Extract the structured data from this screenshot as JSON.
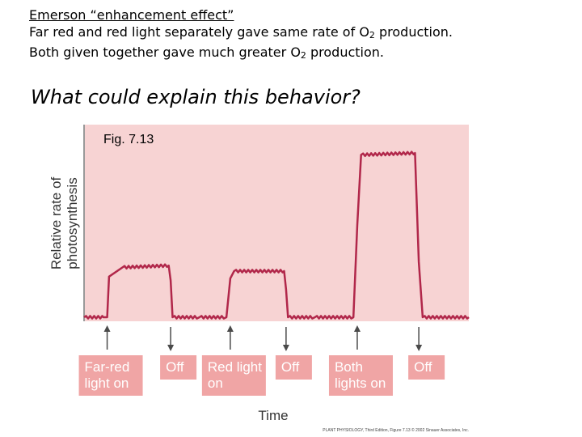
{
  "slide": {
    "heading": "Emerson “enhancement effect”",
    "line1_pre": "Far red and red light separately gave same rate of O",
    "line1_sub": "2",
    "line1_post": " production.",
    "line2_pre": "Both given together gave much greater O",
    "line2_sub": "2",
    "line2_post": " production.",
    "question": "What could explain this behavior?"
  },
  "chart_data": {
    "type": "line",
    "figure_label": "Fig. 7.13",
    "xlabel": "Time",
    "ylabel": "Relative rate of photosynthesis",
    "ylabel_lines": [
      "Relative rate of",
      "photosynthesis"
    ],
    "xlim": [
      0,
      100
    ],
    "ylim": [
      0,
      100
    ],
    "grid": false,
    "series": [
      {
        "x": [
          0,
          5,
          6,
          6.5,
          10,
          22,
          22.5,
          23,
          30,
          37,
          38,
          39,
          52,
          52.5,
          53,
          60,
          70,
          71,
          72,
          86,
          87,
          88,
          100
        ],
        "y": [
          0,
          0,
          0,
          22,
          27,
          28,
          20,
          0,
          0,
          0,
          21,
          25,
          25,
          15,
          0,
          0,
          0,
          50,
          88,
          89,
          30,
          0,
          0
        ]
      }
    ],
    "events": [
      {
        "label": "Far-red light on",
        "lines": [
          "Far-red",
          "light on"
        ],
        "direction": "up",
        "x": 6
      },
      {
        "label": "Off",
        "lines": [
          "Off"
        ],
        "direction": "down",
        "x": 22.5
      },
      {
        "label": "Red light on",
        "lines": [
          "Red light",
          "on"
        ],
        "direction": "up",
        "x": 38
      },
      {
        "label": "Off",
        "lines": [
          "Off"
        ],
        "direction": "down",
        "x": 52.5
      },
      {
        "label": "Both lights on",
        "lines": [
          "Both",
          "lights on"
        ],
        "direction": "up",
        "x": 71
      },
      {
        "label": "Off",
        "lines": [
          "Off"
        ],
        "direction": "down",
        "x": 87
      }
    ],
    "credit": "PLANT PHYSIOLOGY, Third Edition, Figure 7.13 © 2002 Sinauer Associates, Inc.",
    "colors": {
      "plot_background": "#f7d3d3",
      "trace": "#b1274a",
      "label_box": "#f0a5a5",
      "arrow": "#4a4a4a"
    }
  }
}
